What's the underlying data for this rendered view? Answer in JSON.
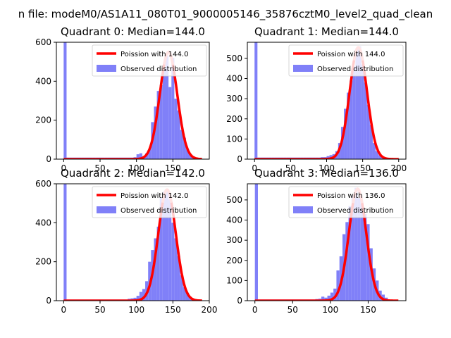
{
  "figure": {
    "suptitle": "n file: modeM0/AS1A11_080T01_9000005146_35876cztM0_level2_quad_clean"
  },
  "colors": {
    "hist": "#8080f8",
    "poisson": "#ff0000",
    "poisson_highlight": "#ff9999",
    "axes": "#000000",
    "background": "#ffffff"
  },
  "chart_data": [
    {
      "type": "bar",
      "title": "Quadrant 0: Median=144.0",
      "xlim": [
        -10,
        200
      ],
      "ylim": [
        0,
        600
      ],
      "xticks": [
        0,
        50,
        100,
        150
      ],
      "xticks_labels": [
        "0",
        "50",
        "100",
        "150"
      ],
      "yticks": [
        0,
        200,
        400,
        600
      ],
      "yticks_labels": [
        "0",
        "200",
        "400",
        "600"
      ],
      "legend_location": "upper right",
      "poisson_label": "Poission with 144.0",
      "hist_label": "Observed distribution",
      "median": 144.0,
      "poisson_scale": 550,
      "poisson_sigma": 12.0,
      "bin_width": 4,
      "bins": [
        {
          "x": 0,
          "y": 600
        },
        {
          "x": 4,
          "y": 8
        },
        {
          "x": 8,
          "y": 8
        },
        {
          "x": 12,
          "y": 8
        },
        {
          "x": 16,
          "y": 8
        },
        {
          "x": 20,
          "y": 8
        },
        {
          "x": 24,
          "y": 8
        },
        {
          "x": 28,
          "y": 8
        },
        {
          "x": 32,
          "y": 8
        },
        {
          "x": 36,
          "y": 8
        },
        {
          "x": 40,
          "y": 8
        },
        {
          "x": 44,
          "y": 8
        },
        {
          "x": 48,
          "y": 8
        },
        {
          "x": 52,
          "y": 8
        },
        {
          "x": 56,
          "y": 8
        },
        {
          "x": 60,
          "y": 8
        },
        {
          "x": 64,
          "y": 8
        },
        {
          "x": 68,
          "y": 8
        },
        {
          "x": 72,
          "y": 8
        },
        {
          "x": 76,
          "y": 8
        },
        {
          "x": 80,
          "y": 8
        },
        {
          "x": 84,
          "y": 8
        },
        {
          "x": 88,
          "y": 8
        },
        {
          "x": 92,
          "y": 8
        },
        {
          "x": 96,
          "y": 10
        },
        {
          "x": 100,
          "y": 25
        },
        {
          "x": 104,
          "y": 30
        },
        {
          "x": 108,
          "y": 15
        },
        {
          "x": 112,
          "y": 30
        },
        {
          "x": 116,
          "y": 50
        },
        {
          "x": 120,
          "y": 190
        },
        {
          "x": 124,
          "y": 270
        },
        {
          "x": 128,
          "y": 350
        },
        {
          "x": 132,
          "y": 380
        },
        {
          "x": 136,
          "y": 460
        },
        {
          "x": 140,
          "y": 530
        },
        {
          "x": 144,
          "y": 370
        },
        {
          "x": 148,
          "y": 520
        },
        {
          "x": 152,
          "y": 310
        },
        {
          "x": 156,
          "y": 250
        },
        {
          "x": 160,
          "y": 150
        },
        {
          "x": 164,
          "y": 110
        },
        {
          "x": 168,
          "y": 50
        },
        {
          "x": 172,
          "y": 25
        },
        {
          "x": 176,
          "y": 15
        }
      ]
    },
    {
      "type": "bar",
      "title": "Quadrant 1: Median=144.0",
      "xlim": [
        -10,
        210
      ],
      "ylim": [
        0,
        580
      ],
      "xticks": [
        0,
        50,
        100,
        150,
        200
      ],
      "xticks_labels": [
        "0",
        "50",
        "100",
        "150",
        "200"
      ],
      "yticks": [
        0,
        100,
        200,
        300,
        400,
        500
      ],
      "yticks_labels": [
        "0",
        "100",
        "200",
        "300",
        "400",
        "500"
      ],
      "legend_location": "upper right",
      "poisson_label": "Poission with 144.0",
      "hist_label": "Observed distribution",
      "median": 144.0,
      "poisson_scale": 555,
      "poisson_sigma": 12.0,
      "bin_width": 4,
      "bins": [
        {
          "x": 0,
          "y": 580
        },
        {
          "x": 4,
          "y": 8
        },
        {
          "x": 8,
          "y": 8
        },
        {
          "x": 12,
          "y": 8
        },
        {
          "x": 16,
          "y": 8
        },
        {
          "x": 20,
          "y": 8
        },
        {
          "x": 24,
          "y": 8
        },
        {
          "x": 28,
          "y": 8
        },
        {
          "x": 32,
          "y": 8
        },
        {
          "x": 36,
          "y": 8
        },
        {
          "x": 40,
          "y": 8
        },
        {
          "x": 44,
          "y": 8
        },
        {
          "x": 48,
          "y": 8
        },
        {
          "x": 52,
          "y": 8
        },
        {
          "x": 56,
          "y": 8
        },
        {
          "x": 60,
          "y": 8
        },
        {
          "x": 64,
          "y": 8
        },
        {
          "x": 68,
          "y": 8
        },
        {
          "x": 72,
          "y": 8
        },
        {
          "x": 76,
          "y": 8
        },
        {
          "x": 80,
          "y": 8
        },
        {
          "x": 84,
          "y": 8
        },
        {
          "x": 88,
          "y": 8
        },
        {
          "x": 92,
          "y": 10
        },
        {
          "x": 96,
          "y": 10
        },
        {
          "x": 100,
          "y": 15
        },
        {
          "x": 104,
          "y": 20
        },
        {
          "x": 108,
          "y": 25
        },
        {
          "x": 112,
          "y": 40
        },
        {
          "x": 116,
          "y": 80
        },
        {
          "x": 120,
          "y": 160
        },
        {
          "x": 124,
          "y": 250
        },
        {
          "x": 128,
          "y": 330
        },
        {
          "x": 132,
          "y": 390
        },
        {
          "x": 136,
          "y": 460
        },
        {
          "x": 140,
          "y": 550
        },
        {
          "x": 144,
          "y": 560
        },
        {
          "x": 148,
          "y": 470
        },
        {
          "x": 152,
          "y": 380
        },
        {
          "x": 156,
          "y": 270
        },
        {
          "x": 160,
          "y": 170
        },
        {
          "x": 164,
          "y": 80
        },
        {
          "x": 168,
          "y": 40
        },
        {
          "x": 172,
          "y": 20
        },
        {
          "x": 176,
          "y": 10
        }
      ]
    },
    {
      "type": "bar",
      "title": "Quadrant 2: Median=142.0",
      "xlim": [
        -10,
        200
      ],
      "ylim": [
        0,
        600
      ],
      "xticks": [
        0,
        50,
        100,
        150,
        200
      ],
      "xticks_labels": [
        "0",
        "50",
        "100",
        "150",
        "200"
      ],
      "yticks": [
        0,
        200,
        400,
        600
      ],
      "yticks_labels": [
        "0",
        "200",
        "400",
        "600"
      ],
      "legend_location": "upper right",
      "poisson_label": "Poission with 142.0",
      "hist_label": "Observed distribution",
      "median": 142.0,
      "poisson_scale": 570,
      "poisson_sigma": 12.0,
      "bin_width": 4,
      "bins": [
        {
          "x": 0,
          "y": 600
        },
        {
          "x": 4,
          "y": 6
        },
        {
          "x": 8,
          "y": 6
        },
        {
          "x": 12,
          "y": 6
        },
        {
          "x": 16,
          "y": 6
        },
        {
          "x": 20,
          "y": 6
        },
        {
          "x": 24,
          "y": 6
        },
        {
          "x": 28,
          "y": 6
        },
        {
          "x": 32,
          "y": 6
        },
        {
          "x": 36,
          "y": 6
        },
        {
          "x": 40,
          "y": 6
        },
        {
          "x": 44,
          "y": 6
        },
        {
          "x": 48,
          "y": 6
        },
        {
          "x": 52,
          "y": 6
        },
        {
          "x": 56,
          "y": 6
        },
        {
          "x": 60,
          "y": 6
        },
        {
          "x": 64,
          "y": 6
        },
        {
          "x": 68,
          "y": 6
        },
        {
          "x": 72,
          "y": 6
        },
        {
          "x": 76,
          "y": 6
        },
        {
          "x": 80,
          "y": 6
        },
        {
          "x": 84,
          "y": 6
        },
        {
          "x": 88,
          "y": 10
        },
        {
          "x": 92,
          "y": 12
        },
        {
          "x": 96,
          "y": 15
        },
        {
          "x": 100,
          "y": 25
        },
        {
          "x": 104,
          "y": 45
        },
        {
          "x": 108,
          "y": 60
        },
        {
          "x": 112,
          "y": 100
        },
        {
          "x": 116,
          "y": 200
        },
        {
          "x": 120,
          "y": 260
        },
        {
          "x": 124,
          "y": 320
        },
        {
          "x": 128,
          "y": 380
        },
        {
          "x": 132,
          "y": 530
        },
        {
          "x": 136,
          "y": 560
        },
        {
          "x": 140,
          "y": 570
        },
        {
          "x": 144,
          "y": 520
        },
        {
          "x": 148,
          "y": 400
        },
        {
          "x": 152,
          "y": 320
        },
        {
          "x": 156,
          "y": 230
        },
        {
          "x": 160,
          "y": 130
        },
        {
          "x": 164,
          "y": 70
        },
        {
          "x": 168,
          "y": 40
        },
        {
          "x": 172,
          "y": 20
        },
        {
          "x": 176,
          "y": 10
        }
      ]
    },
    {
      "type": "bar",
      "title": "Quadrant 3: Median=136.0",
      "xlim": [
        -10,
        200
      ],
      "ylim": [
        0,
        580
      ],
      "xticks": [
        0,
        50,
        100,
        150
      ],
      "xticks_labels": [
        "0",
        "50",
        "100",
        "150"
      ],
      "yticks": [
        0,
        100,
        200,
        300,
        400,
        500
      ],
      "yticks_labels": [
        "0",
        "100",
        "200",
        "300",
        "400",
        "500"
      ],
      "legend_location": "upper right",
      "poisson_label": "Poission with 136.0",
      "hist_label": "Observed distribution",
      "median": 136.0,
      "poisson_scale": 555,
      "poisson_sigma": 11.5,
      "bin_width": 4,
      "bins": [
        {
          "x": 0,
          "y": 580
        },
        {
          "x": 4,
          "y": 6
        },
        {
          "x": 8,
          "y": 6
        },
        {
          "x": 12,
          "y": 6
        },
        {
          "x": 16,
          "y": 6
        },
        {
          "x": 20,
          "y": 6
        },
        {
          "x": 24,
          "y": 6
        },
        {
          "x": 28,
          "y": 6
        },
        {
          "x": 32,
          "y": 6
        },
        {
          "x": 36,
          "y": 6
        },
        {
          "x": 40,
          "y": 6
        },
        {
          "x": 44,
          "y": 6
        },
        {
          "x": 48,
          "y": 6
        },
        {
          "x": 52,
          "y": 6
        },
        {
          "x": 56,
          "y": 6
        },
        {
          "x": 60,
          "y": 6
        },
        {
          "x": 64,
          "y": 6
        },
        {
          "x": 68,
          "y": 6
        },
        {
          "x": 72,
          "y": 6
        },
        {
          "x": 76,
          "y": 6
        },
        {
          "x": 80,
          "y": 8
        },
        {
          "x": 84,
          "y": 10
        },
        {
          "x": 88,
          "y": 20
        },
        {
          "x": 92,
          "y": 15
        },
        {
          "x": 96,
          "y": 25
        },
        {
          "x": 100,
          "y": 40
        },
        {
          "x": 104,
          "y": 60
        },
        {
          "x": 108,
          "y": 150
        },
        {
          "x": 112,
          "y": 220
        },
        {
          "x": 116,
          "y": 330
        },
        {
          "x": 120,
          "y": 390
        },
        {
          "x": 124,
          "y": 470
        },
        {
          "x": 128,
          "y": 520
        },
        {
          "x": 132,
          "y": 560
        },
        {
          "x": 136,
          "y": 510
        },
        {
          "x": 140,
          "y": 480
        },
        {
          "x": 144,
          "y": 430
        },
        {
          "x": 148,
          "y": 380
        },
        {
          "x": 152,
          "y": 260
        },
        {
          "x": 156,
          "y": 160
        },
        {
          "x": 160,
          "y": 100
        },
        {
          "x": 164,
          "y": 50
        },
        {
          "x": 168,
          "y": 30
        },
        {
          "x": 172,
          "y": 15
        }
      ]
    }
  ]
}
